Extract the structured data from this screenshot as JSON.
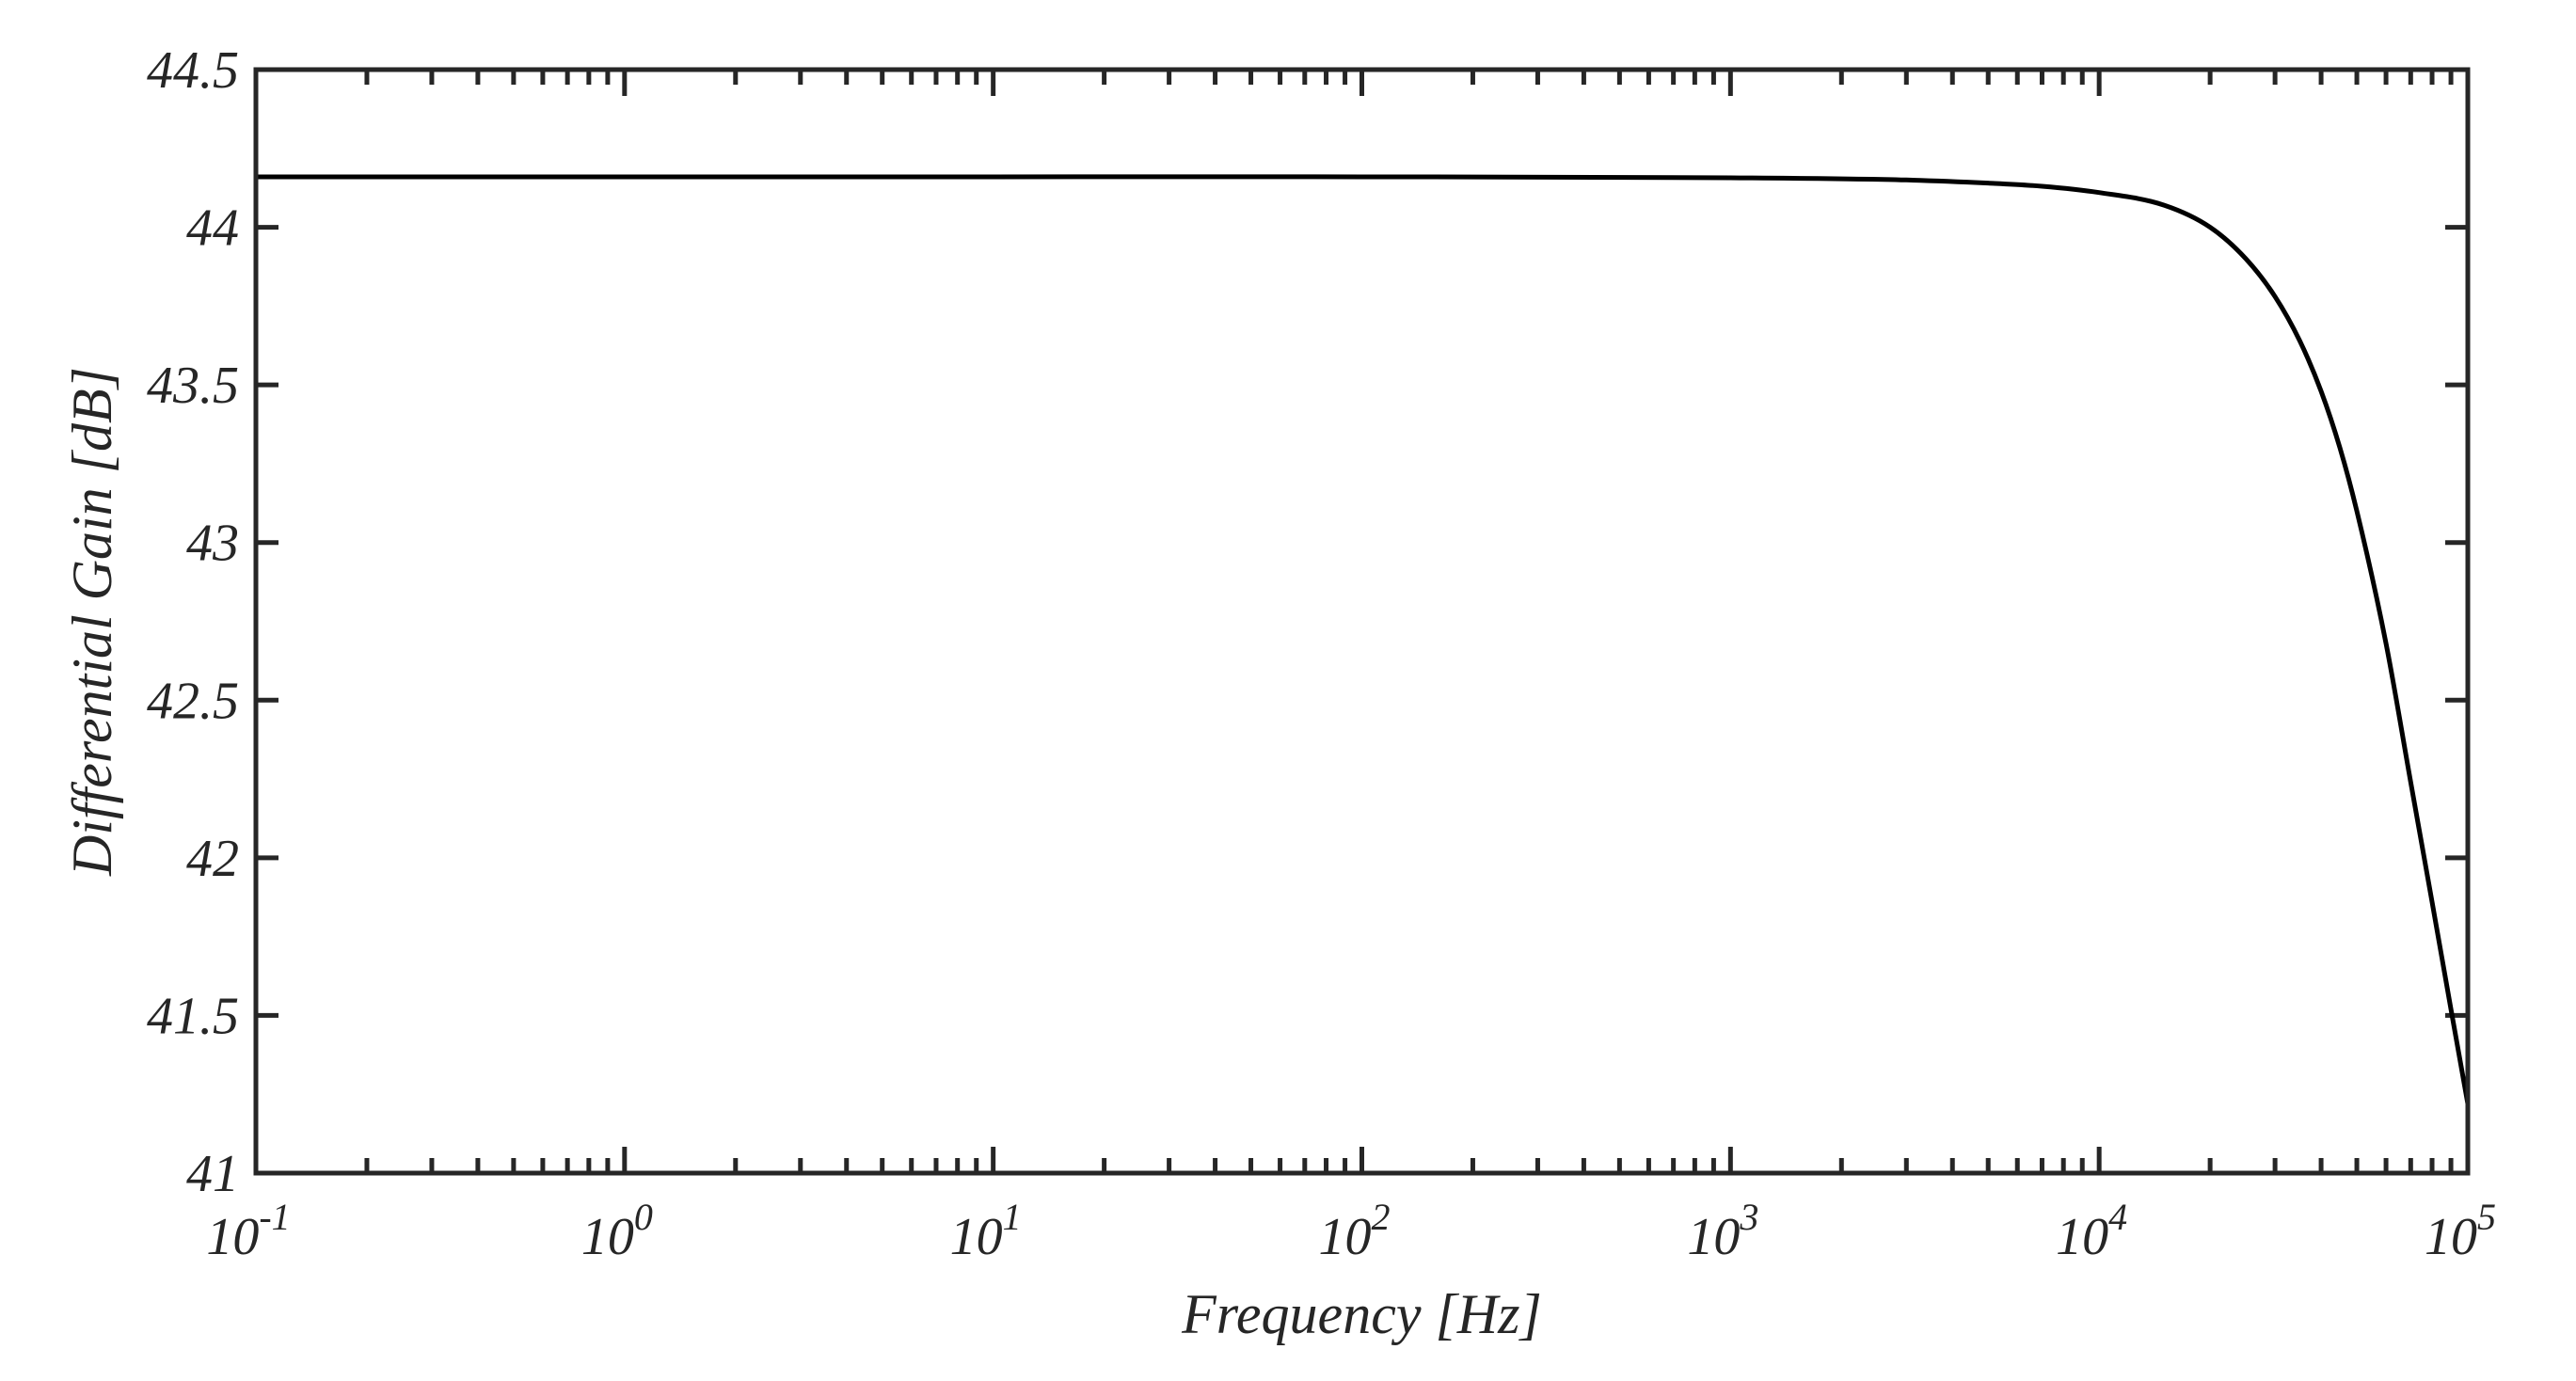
{
  "chart_data": {
    "type": "line",
    "title": "",
    "xlabel": "Frequency [Hz]",
    "ylabel": "Differential Gain [dB]",
    "xscale": "log",
    "xlim": [
      0.1,
      100000
    ],
    "ylim": [
      41,
      44.5
    ],
    "grid": false,
    "x_ticks": [
      {
        "value": 0.1,
        "base": "10",
        "exp": "-1"
      },
      {
        "value": 1,
        "base": "10",
        "exp": "0"
      },
      {
        "value": 10,
        "base": "10",
        "exp": "1"
      },
      {
        "value": 100,
        "base": "10",
        "exp": "2"
      },
      {
        "value": 1000,
        "base": "10",
        "exp": "3"
      },
      {
        "value": 10000,
        "base": "10",
        "exp": "4"
      },
      {
        "value": 100000,
        "base": "10",
        "exp": "5"
      }
    ],
    "y_ticks": [
      "41",
      "41.5",
      "42",
      "42.5",
      "43",
      "43.5",
      "44",
      "44.5"
    ],
    "series": [
      {
        "color": "#000000",
        "x": [
          0.1,
          1,
          10,
          100,
          1000,
          3000,
          5000,
          7000,
          10000,
          15000,
          20000,
          25000,
          30000,
          35000,
          40000,
          45000,
          50000,
          60000,
          70000,
          80000,
          90000,
          100000
        ],
        "y": [
          44.16,
          44.16,
          44.16,
          44.16,
          44.157,
          44.15,
          44.14,
          44.13,
          44.11,
          44.07,
          44.0,
          43.9,
          43.78,
          43.64,
          43.48,
          43.3,
          43.1,
          42.68,
          42.24,
          41.86,
          41.52,
          41.22
        ]
      }
    ]
  }
}
